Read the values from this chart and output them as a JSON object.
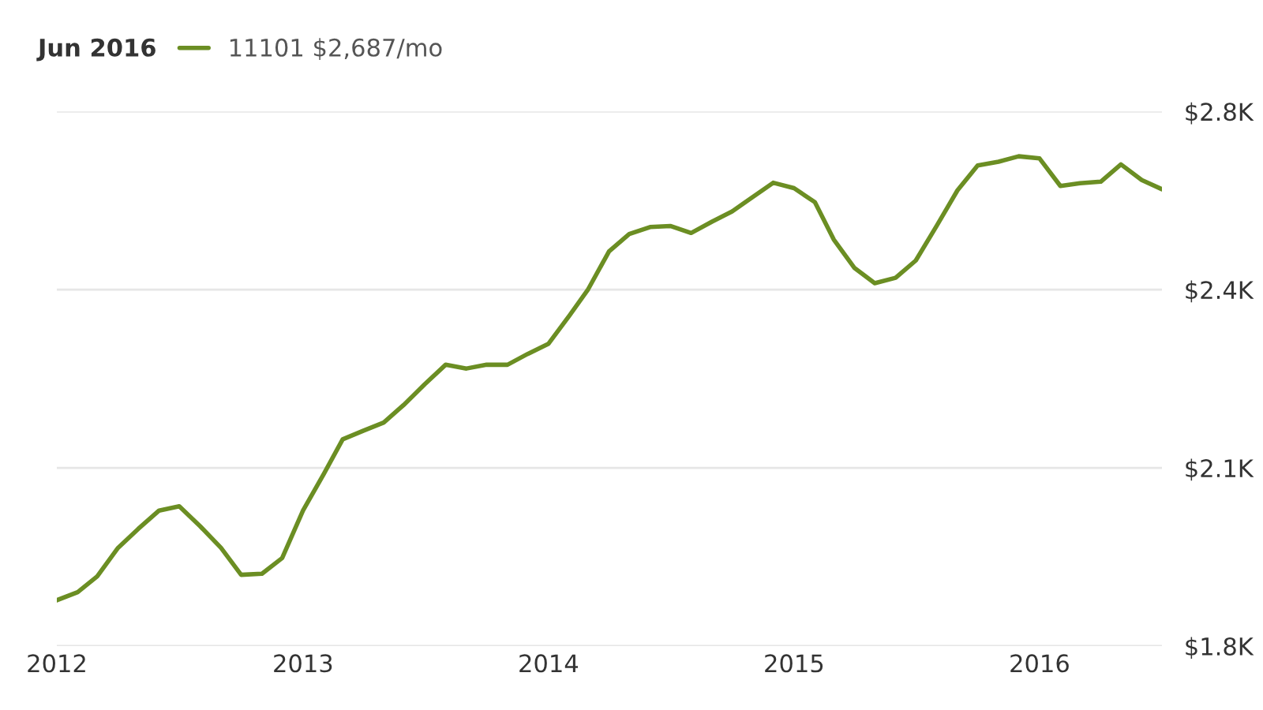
{
  "chart_data": {
    "type": "line",
    "title": "Jun 2016",
    "x": [
      "2012-01",
      "2012-02",
      "2012-03",
      "2012-04",
      "2012-05",
      "2012-06",
      "2012-07",
      "2012-08",
      "2012-09",
      "2012-10",
      "2012-11",
      "2012-12",
      "2013-01",
      "2013-02",
      "2013-03",
      "2013-04",
      "2013-05",
      "2013-06",
      "2013-07",
      "2013-08",
      "2013-09",
      "2013-10",
      "2013-11",
      "2013-12",
      "2014-01",
      "2014-02",
      "2014-03",
      "2014-04",
      "2014-05",
      "2014-06",
      "2014-07",
      "2014-08",
      "2014-09",
      "2014-10",
      "2014-11",
      "2014-12",
      "2015-01",
      "2015-02",
      "2015-03",
      "2015-04",
      "2015-05",
      "2015-06",
      "2015-07",
      "2015-08",
      "2015-09",
      "2015-10",
      "2015-11",
      "2015-12",
      "2016-01",
      "2016-02",
      "2016-03",
      "2016-04",
      "2016-05",
      "2016-06",
      "2016-07"
    ],
    "series": [
      {
        "name": "11101 $2,687/mo",
        "color": "#6b8e23",
        "values": [
          1865,
          1880,
          1909,
          1962,
          1997,
          2031,
          2039,
          2002,
          1962,
          1912,
          1914,
          1943,
          2031,
          2099,
          2163,
          2179,
          2194,
          2228,
          2265,
          2301,
          2294,
          2301,
          2301,
          2321,
          2340,
          2392,
          2441,
          2511,
          2543,
          2556,
          2558,
          2545,
          2566,
          2585,
          2612,
          2638,
          2628,
          2602,
          2533,
          2480,
          2452,
          2462,
          2494,
          2558,
          2624,
          2670,
          2677,
          2687,
          2683,
          2632,
          2637,
          2640,
          2672,
          2643,
          2626
        ]
      }
    ],
    "xlim": [
      "2012-01",
      "2016-07"
    ],
    "xticks": [
      {
        "value": "2012-01",
        "label": "2012"
      },
      {
        "value": "2013-01",
        "label": "2013"
      },
      {
        "value": "2014-01",
        "label": "2014"
      },
      {
        "value": "2015-01",
        "label": "2015"
      },
      {
        "value": "2016-01",
        "label": "2016"
      }
    ],
    "ylim": [
      1780,
      2770
    ],
    "yticks": [
      {
        "value": 1780,
        "label": "$1.8K"
      },
      {
        "value": 2110,
        "label": "$2.1K"
      },
      {
        "value": 2440,
        "label": "$2.4K"
      },
      {
        "value": 2770,
        "label": "$2.8K"
      }
    ],
    "grid": "y",
    "legend": "top left",
    "marker": "none",
    "line_style": "solid"
  }
}
